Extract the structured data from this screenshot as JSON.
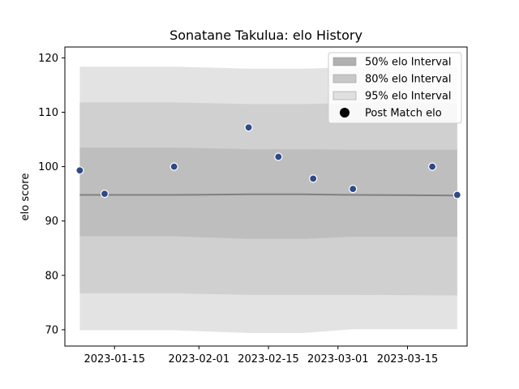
{
  "chart_data": {
    "type": "line",
    "title": "Sonatane Takulua: elo History",
    "xlabel": "",
    "ylabel": "elo score",
    "xlim": [
      "2023-01-05",
      "2023-03-27"
    ],
    "ylim": [
      67,
      122
    ],
    "y_ticks": [
      70,
      80,
      90,
      100,
      110,
      120
    ],
    "x_ticks": [
      "2023-01-15",
      "2023-02-01",
      "2023-02-15",
      "2023-03-01",
      "2023-03-15"
    ],
    "grid": false,
    "legend_position": "top-right",
    "band_dates": [
      "2023-01-08",
      "2023-01-27",
      "2023-02-11",
      "2023-02-22",
      "2023-03-04",
      "2023-03-25"
    ],
    "mean": [
      94.8,
      94.8,
      94.9,
      94.9,
      94.8,
      94.7
    ],
    "intervals": [
      {
        "name": "95% elo Interval",
        "color": "#e3e3e3",
        "upper": [
          118.4,
          118.4,
          118.0,
          118.0,
          118.3,
          118.3
        ],
        "lower": [
          69.9,
          69.9,
          69.4,
          69.4,
          70.1,
          70.1
        ]
      },
      {
        "name": "80% elo Interval",
        "color": "#d0d0d0",
        "upper": [
          111.8,
          111.8,
          111.5,
          111.5,
          111.7,
          111.7
        ],
        "lower": [
          76.7,
          76.7,
          76.4,
          76.4,
          76.4,
          76.3
        ]
      },
      {
        "name": "50% elo Interval",
        "color": "#bebebe",
        "upper": [
          103.5,
          103.5,
          103.2,
          103.2,
          103.1,
          103.1
        ],
        "lower": [
          87.2,
          87.2,
          86.7,
          86.7,
          87.1,
          87.1
        ]
      }
    ],
    "points": {
      "name": "Post Match elo",
      "color": "#2e4a87",
      "x": [
        "2023-01-08",
        "2023-01-13",
        "2023-01-27",
        "2023-02-11",
        "2023-02-17",
        "2023-02-24",
        "2023-03-04",
        "2023-03-20",
        "2023-03-25"
      ],
      "y": [
        99.3,
        95.0,
        100.0,
        107.2,
        101.8,
        97.8,
        95.9,
        100.0,
        94.8
      ]
    },
    "legend": [
      {
        "label": "50% elo Interval",
        "kind": "patch",
        "color": "#b0b0b0"
      },
      {
        "label": "80% elo Interval",
        "kind": "patch",
        "color": "#c8c8c8"
      },
      {
        "label": "95% elo Interval",
        "kind": "patch",
        "color": "#e0e0e0"
      },
      {
        "label": "Post Match elo",
        "kind": "marker",
        "color": "#000000"
      }
    ]
  }
}
